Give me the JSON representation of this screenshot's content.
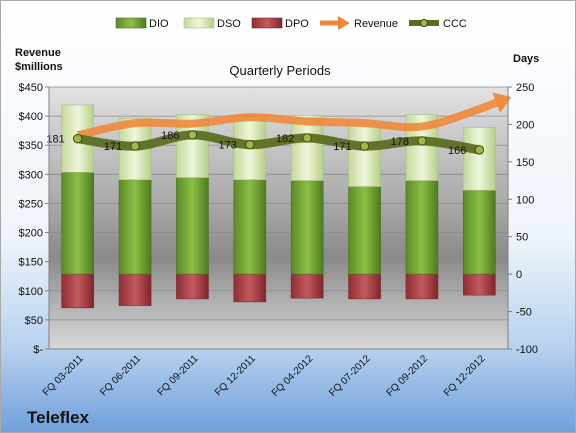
{
  "chart_data": {
    "type": "bar",
    "title": "Quarterly Periods",
    "company": "Teleflex",
    "y_left_label_line1": "Revenue",
    "y_left_label_line2": "$millions",
    "y_right_label": "Days",
    "y_left_lim": [
      0,
      450
    ],
    "y_right_lim": [
      -100,
      250
    ],
    "y_left_ticks": [
      "$-",
      "$50",
      "$100",
      "$150",
      "$200",
      "$250",
      "$300",
      "$350",
      "$400",
      "$450"
    ],
    "y_left_tick_values": [
      0,
      50,
      100,
      150,
      200,
      250,
      300,
      350,
      400,
      450
    ],
    "y_right_ticks": [
      "-100",
      "-50",
      "0",
      "50",
      "100",
      "150",
      "200",
      "250"
    ],
    "y_right_tick_values": [
      -100,
      -50,
      0,
      50,
      100,
      150,
      200,
      250
    ],
    "categories": [
      "FQ 03-2011",
      "FQ 06-2011",
      "FQ 09-2011",
      "FQ 12-2011",
      "FQ 04-2012",
      "FQ 07-2012",
      "FQ 09-2012",
      "FQ 12-2012"
    ],
    "legend": [
      "DIO",
      "DSO",
      "DPO",
      "Revenue",
      "CCC"
    ],
    "series": [
      {
        "name": "DIO",
        "axis": "right",
        "values": [
          136,
          126,
          129,
          126,
          125,
          117,
          125,
          112
        ]
      },
      {
        "name": "DSO",
        "axis": "right",
        "values": [
          90,
          82,
          84,
          84,
          87,
          84,
          88,
          84
        ]
      },
      {
        "name": "DPO",
        "axis": "right",
        "values": [
          -45,
          -42,
          -33,
          -37,
          -32,
          -33,
          -33,
          -28
        ]
      },
      {
        "name": "Revenue",
        "axis": "left",
        "values": [
          367,
          388,
          387,
          398,
          391,
          388,
          382,
          412
        ]
      },
      {
        "name": "CCC",
        "axis": "right",
        "values": [
          181,
          171,
          186,
          173,
          182,
          171,
          178,
          166
        ]
      }
    ],
    "ccc_labels": [
      "181",
      "171",
      "186",
      "173",
      "182",
      "171",
      "178",
      "166"
    ],
    "colors": {
      "dio": "#7aa33a",
      "dso": "#d8e9b0",
      "dpo": "#b5454a",
      "revenue": "#f0883a",
      "ccc": "#5c6e22",
      "ccc_marker": "#9bbb45"
    }
  }
}
